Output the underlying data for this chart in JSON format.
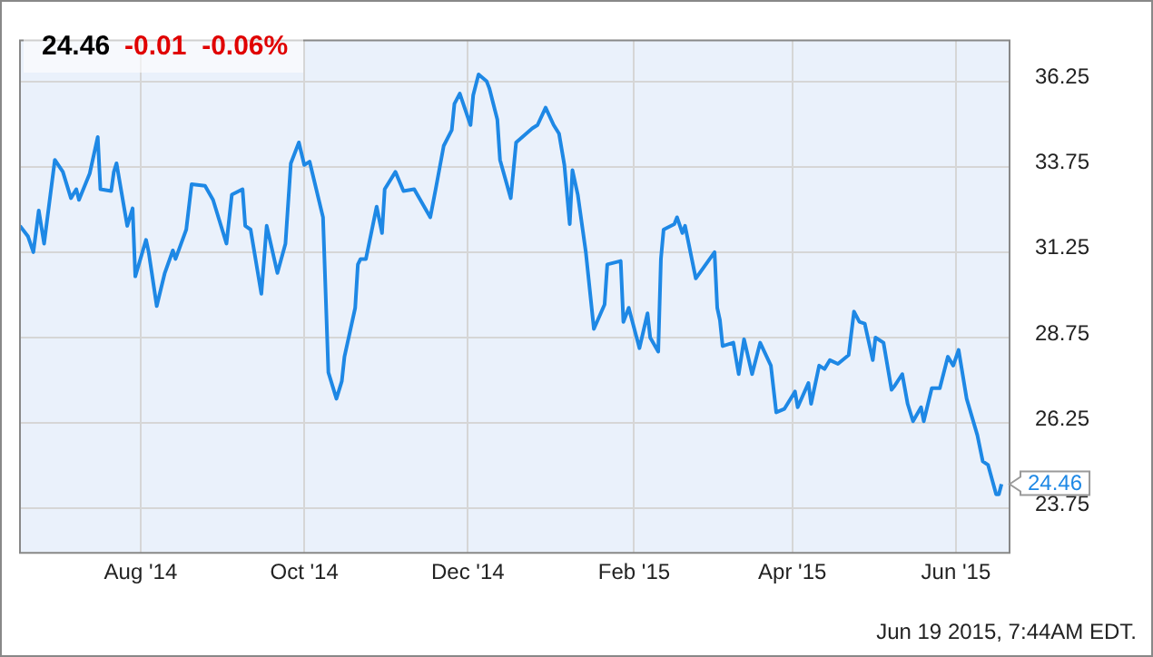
{
  "chart_data": {
    "type": "line",
    "title": "24.46",
    "subtitle": "-0.01  -0.06%",
    "annotations": [
      {
        "text": "24.46",
        "x": "2015-06-18",
        "y": 24.46
      },
      "Jun 19 2015, 7:44AM EDT."
    ],
    "x": [
      "2014-06-17",
      "2014-06-20",
      "2014-06-22",
      "2014-06-24",
      "2014-06-26",
      "2014-06-30",
      "2014-07-03",
      "2014-07-06",
      "2014-07-08",
      "2014-07-09",
      "2014-07-13",
      "2014-07-16",
      "2014-07-17",
      "2014-07-21",
      "2014-07-22",
      "2014-07-23",
      "2014-07-27",
      "2014-07-29",
      "2014-07-30",
      "2014-08-03",
      "2014-08-04",
      "2014-08-07",
      "2014-08-10",
      "2014-08-13",
      "2014-08-14",
      "2014-08-18",
      "2014-08-20",
      "2014-08-25",
      "2014-08-28",
      "2014-09-02",
      "2014-09-04",
      "2014-09-08",
      "2014-09-09",
      "2014-09-11",
      "2014-09-15",
      "2014-09-17",
      "2014-09-21",
      "2014-09-24",
      "2014-09-26",
      "2014-09-29",
      "2014-10-01",
      "2014-10-03",
      "2014-10-08",
      "2014-10-10",
      "2014-10-13",
      "2014-10-15",
      "2014-10-16",
      "2014-10-20",
      "2014-10-21",
      "2014-10-22",
      "2014-10-24",
      "2014-10-28",
      "2014-10-30",
      "2014-10-31",
      "2014-11-04",
      "2014-11-07",
      "2014-11-11",
      "2014-11-17",
      "2014-11-19",
      "2014-11-22",
      "2014-11-25",
      "2014-11-26",
      "2014-11-28",
      "2014-12-02",
      "2014-12-03",
      "2014-12-05",
      "2014-12-08",
      "2014-12-09",
      "2014-12-12",
      "2014-12-13",
      "2014-12-17",
      "2014-12-19",
      "2014-12-25",
      "2014-12-27",
      "2014-12-30",
      "2015-01-02",
      "2015-01-04",
      "2015-01-06",
      "2015-01-08",
      "2015-01-09",
      "2015-01-11",
      "2015-01-14",
      "2015-01-17",
      "2015-01-21",
      "2015-01-22",
      "2015-01-27",
      "2015-01-28",
      "2015-01-30",
      "2015-02-03",
      "2015-02-06",
      "2015-02-07",
      "2015-02-10",
      "2015-02-11",
      "2015-02-12",
      "2015-02-16",
      "2015-02-17",
      "2015-02-19",
      "2015-02-20",
      "2015-02-24",
      "2015-03-03",
      "2015-03-04",
      "2015-03-05",
      "2015-03-06",
      "2015-03-10",
      "2015-03-12",
      "2015-03-14",
      "2015-03-17",
      "2015-03-20",
      "2015-03-24",
      "2015-03-26",
      "2015-03-29",
      "2015-04-02",
      "2015-04-03",
      "2015-04-07",
      "2015-04-08",
      "2015-04-11",
      "2015-04-13",
      "2015-04-15",
      "2015-04-18",
      "2015-04-22",
      "2015-04-24",
      "2015-04-26",
      "2015-04-28",
      "2015-05-01",
      "2015-05-02",
      "2015-05-05",
      "2015-05-08",
      "2015-05-09",
      "2015-05-12",
      "2015-05-14",
      "2015-05-16",
      "2015-05-19",
      "2015-05-20",
      "2015-05-23",
      "2015-05-26",
      "2015-05-29",
      "2015-05-31",
      "2015-06-02",
      "2015-06-05",
      "2015-06-09",
      "2015-06-11",
      "2015-06-13",
      "2015-06-16",
      "2015-06-17",
      "2015-06-18"
    ],
    "series": [
      {
        "color": "#1e88e5",
        "values": [
          32.02,
          31.71,
          31.25,
          32.47,
          31.5,
          33.95,
          33.6,
          32.83,
          33.09,
          32.78,
          33.55,
          34.62,
          33.09,
          33.04,
          33.6,
          33.85,
          32.02,
          32.53,
          30.54,
          31.61,
          31.25,
          29.67,
          30.64,
          31.3,
          31.05,
          31.91,
          33.24,
          33.19,
          32.78,
          31.5,
          32.93,
          33.09,
          32.02,
          31.91,
          30.03,
          32.02,
          30.64,
          31.5,
          33.85,
          34.46,
          33.8,
          33.9,
          32.27,
          27.73,
          26.96,
          27.47,
          28.19,
          29.62,
          30.89,
          31.05,
          31.05,
          32.58,
          31.81,
          33.09,
          33.6,
          33.04,
          33.09,
          32.27,
          33.09,
          34.36,
          34.82,
          35.59,
          35.89,
          34.97,
          35.84,
          36.45,
          36.25,
          36.05,
          35.13,
          33.95,
          32.83,
          34.46,
          34.87,
          34.97,
          35.48,
          34.97,
          34.72,
          33.8,
          32.07,
          33.65,
          32.93,
          31.25,
          29.0,
          29.72,
          30.89,
          30.99,
          29.21,
          29.62,
          28.44,
          29.46,
          28.75,
          28.34,
          31.05,
          31.91,
          32.07,
          32.27,
          31.81,
          32.02,
          30.48,
          31.25,
          29.62,
          29.26,
          28.5,
          28.6,
          27.68,
          28.7,
          27.68,
          28.6,
          27.93,
          26.56,
          26.66,
          27.17,
          26.71,
          27.42,
          26.81,
          27.93,
          27.83,
          28.09,
          27.98,
          28.24,
          29.51,
          29.21,
          29.16,
          28.09,
          28.75,
          28.6,
          27.22,
          27.32,
          27.68,
          26.81,
          26.3,
          26.71,
          26.3,
          27.27,
          27.27,
          28.19,
          27.93,
          28.39,
          26.96,
          25.89,
          25.13,
          25.02,
          24.16,
          24.16,
          24.46
        ]
      }
    ],
    "xlim": [
      "2014-06-17",
      "2015-06-21"
    ],
    "xticks": [
      {
        "value": "2014-08-01",
        "label": "Aug '14"
      },
      {
        "value": "2014-10-01",
        "label": "Oct '14"
      },
      {
        "value": "2014-12-01",
        "label": "Dec '14"
      },
      {
        "value": "2015-02-01",
        "label": "Feb '15"
      },
      {
        "value": "2015-04-01",
        "label": "Apr '15"
      },
      {
        "value": "2015-06-01",
        "label": "Jun '15"
      }
    ],
    "ylim": [
      22.45,
      37.45
    ],
    "yticks": [
      23.75,
      26.25,
      28.75,
      31.25,
      33.75,
      36.25
    ],
    "grid": true,
    "legend": false,
    "marker": "none",
    "line_style": "solid"
  }
}
